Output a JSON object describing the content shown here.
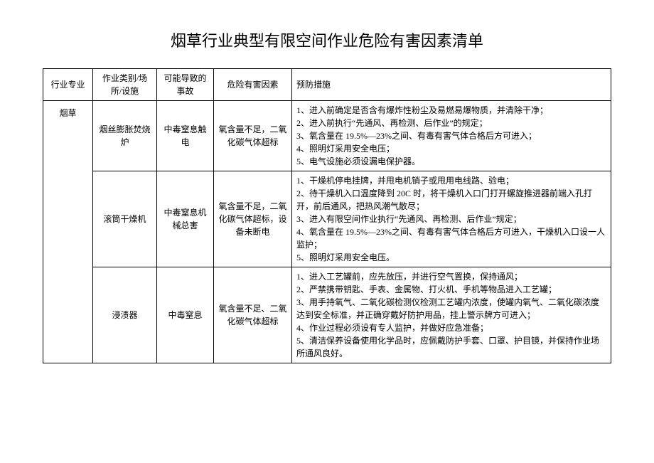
{
  "title": "烟草行业典型有限空间作业危险有害因素清单",
  "headers": {
    "col1": "行业专业",
    "col2": "作业类别/场所/设施",
    "col3": "可能导致的事故",
    "col4": "危险有害因素",
    "col5": "预防措施"
  },
  "industry": "烟草",
  "rows": [
    {
      "category": "烟丝膨胀焚烧炉",
      "accident": "中毒窒息触电",
      "hazard": "氧含量不足，二氧化碳气体超标",
      "measures": "1、进入前确定是否含有爆炸性粉尘及易燃易爆物质，并清除干净；\n2、进入前执行“先通风、再检测、后作业”的规定；\n3、氧含量在 19.5%—23%之间、有毒有害气体合格后方可进入；\n4、照明灯采用安全电压；\n5、电气设施必须设漏电保护器。"
    },
    {
      "category": "滚筒干燥机",
      "accident": "中毒窒息机械总害",
      "hazard": "氧含量不足，二氧化碳气体超标，设备未断电",
      "measures": "1、干燥机停电挂牌，并甩电机销子或甩用电线路、验电；\n2、待干燥机入口温度降到 20C 时，将干燥机入口门打开螺旋推进器前端入孔打开，前后通风，把热风潮气散尽；\n3、进入有限空间作业执行“先通风、再检测、后作业”规定；\n4、氧含量在 19.5%—23%之间、有毒有害气体合格后方可进入，干燥机入口设一人监护；\n5、照明灯采用安全电压。"
    },
    {
      "category": "浸渍器",
      "accident": "中毒窒息",
      "hazard": "氧含量不足、二氧化碳气体超标",
      "measures": "1、进入工艺罐前，应先放压，并进行空气置换，保持通风；\n2、严禁携带钥匙、手表、金属物、打火机、手机等物品进入工艺罐；\n3、用手持氧气、二氧化碳检测仪检测工艺罐内浓度，使罐内氧气、二氧化碳浓度达到安全标准，并正确穿戴好防护用品，挂上警示牌方可进入；\n4、作业过程必须设有专人监护，并做好应急准备；\n5、清洁保养设备使用化学品时，应佩戴防护手套、口罩、护目镜，并保持作业场所通风良好。"
    }
  ]
}
